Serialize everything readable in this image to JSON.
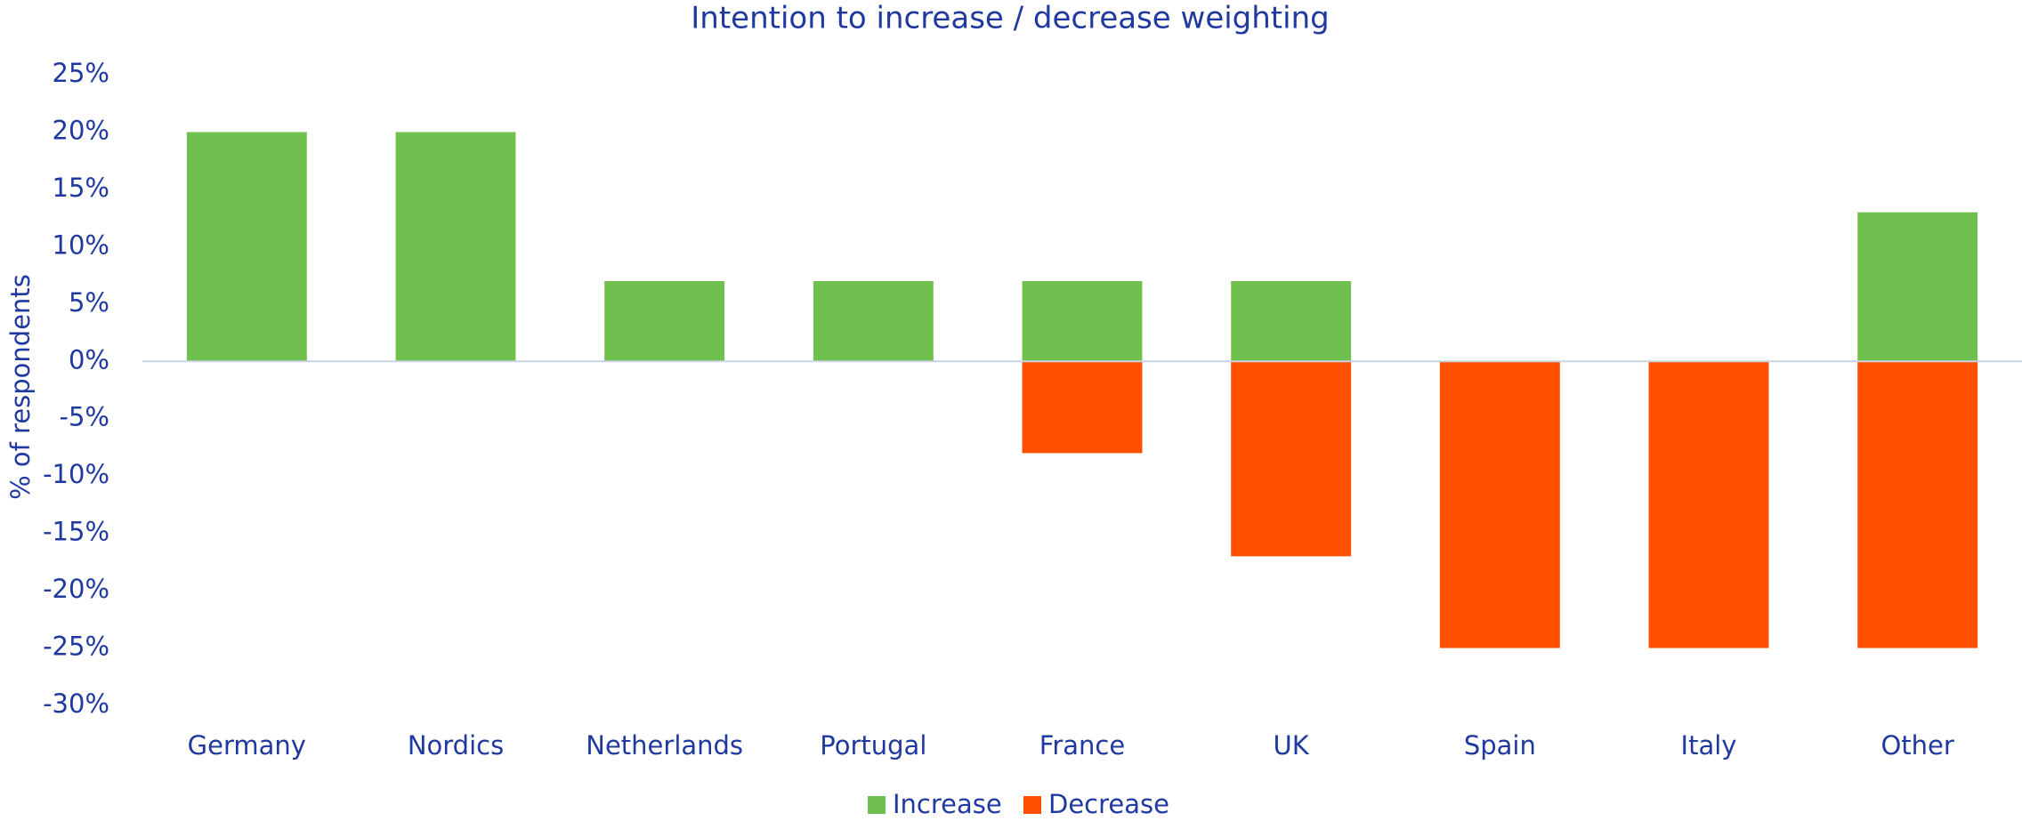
{
  "chart_data": {
    "type": "bar",
    "stacked": true,
    "title": "Intention to increase / decrease weighting",
    "y_label": "% of respondents",
    "categories": [
      "Germany",
      "Nordics",
      "Netherlands",
      "Portugal",
      "France",
      "UK",
      "Spain",
      "Italy",
      "Other"
    ],
    "series": [
      {
        "name": "Increase",
        "color": "#70c04f",
        "values": [
          20,
          20,
          7,
          7,
          7,
          7,
          0,
          0,
          13
        ]
      },
      {
        "name": "Decrease",
        "color": "#ff5000",
        "values": [
          0,
          0,
          0,
          0,
          -8,
          -17,
          -25,
          -25,
          -25
        ]
      }
    ],
    "ylim": [
      -30,
      25
    ],
    "yticks": [
      {
        "value": 25,
        "label": "25%"
      },
      {
        "value": 20,
        "label": "20%"
      },
      {
        "value": 15,
        "label": "15%"
      },
      {
        "value": 10,
        "label": "10%"
      },
      {
        "value": 5,
        "label": "5%"
      },
      {
        "value": 0,
        "label": "0%"
      },
      {
        "value": -5,
        "label": "-5%"
      },
      {
        "value": -10,
        "label": "-10%"
      },
      {
        "value": -15,
        "label": "-15%"
      },
      {
        "value": -20,
        "label": "-20%"
      },
      {
        "value": -25,
        "label": "-25%"
      },
      {
        "value": -30,
        "label": "-30%"
      }
    ],
    "grid": false,
    "legend": "bottom"
  }
}
